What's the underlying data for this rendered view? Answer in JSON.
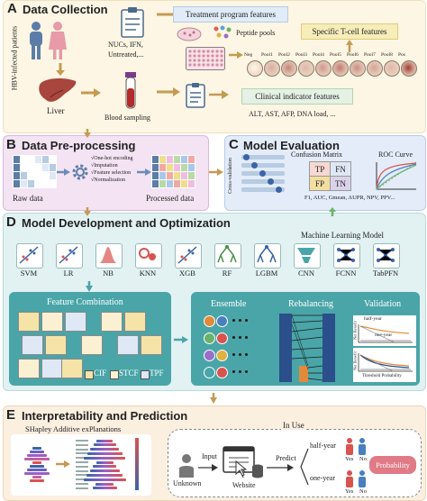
{
  "sections": {
    "a": {
      "letter": "A",
      "title": "Data Collection"
    },
    "b": {
      "letter": "B",
      "title": "Data Pre-processing"
    },
    "c": {
      "letter": "C",
      "title": "Model Evaluation"
    },
    "d": {
      "letter": "D",
      "title": "Model Development and Optimization"
    },
    "e": {
      "letter": "E",
      "title": "Interpretability and Prediction"
    }
  },
  "collection": {
    "side_label": "HBV-infected patients",
    "liver": "Liver",
    "blood": "Blood sampling",
    "culture_items": "NUCs, IFN,\nUntreated,...",
    "treatment_box": "Treatment program features",
    "peptide": "Peptide pools",
    "tcell_box": "Specific T-cell features",
    "wells": [
      "Neg",
      "Pool1",
      "Pool2",
      "Pool3",
      "Pool4",
      "Pool5",
      "Pool6",
      "Pool7",
      "Pool8",
      "Pos"
    ],
    "clinical_box": "Clinical indicator features",
    "clinical_items": "ALT, AST, AFP, DNA load, ..."
  },
  "preprocessing": {
    "raw": "Raw data",
    "processed": "Processed data",
    "steps": [
      "√One-hot encoding",
      "√Imputation",
      "√Feature selection",
      "√Normalization"
    ]
  },
  "evaluation": {
    "cv": "Cross-validation",
    "cm_title": "Confusion Matrix",
    "cells": [
      "TP",
      "FN",
      "FP",
      "TN"
    ],
    "roc_title": "ROC Curve",
    "metrics": "F1, AUC, Gmean, AUPR, NPV, PPV..."
  },
  "development": {
    "ml_title": "Machine Learning Model",
    "models": [
      "SVM",
      "LR",
      "NB",
      "KNN",
      "XGB",
      "RF",
      "LGBM",
      "CNN",
      "FCNN",
      "TabPFN"
    ],
    "fc_title": "Feature Combination",
    "legend": [
      "CIF",
      "STCF",
      "TPF"
    ],
    "ensemble": "Ensemble",
    "rebalancing": "Rebalancing",
    "validation": "Validation",
    "half_year": "half-year",
    "one_year": "one-year",
    "net_benefit": "Net Benefit",
    "threshold": "Threshold Probability"
  },
  "prediction": {
    "shap": "SHapley Additive exPlanations",
    "in_use": "In Use",
    "input": "Input",
    "unknown": "Unknown",
    "website": "Website",
    "predict": "Predict",
    "half_year": "half-year",
    "one_year": "one-year",
    "yes": "Yes",
    "no": "No",
    "probability": "Probability"
  },
  "colors": {
    "panel_a": "#fdf6e4",
    "panel_b": "#f3e3f3",
    "panel_c": "#e3ecf8",
    "panel_d": "#e2f1f2",
    "panel_e": "#fbefe0",
    "teal": "#4aa5a8",
    "arrow": "#c59a52",
    "green_arrow": "#6bb36b"
  }
}
